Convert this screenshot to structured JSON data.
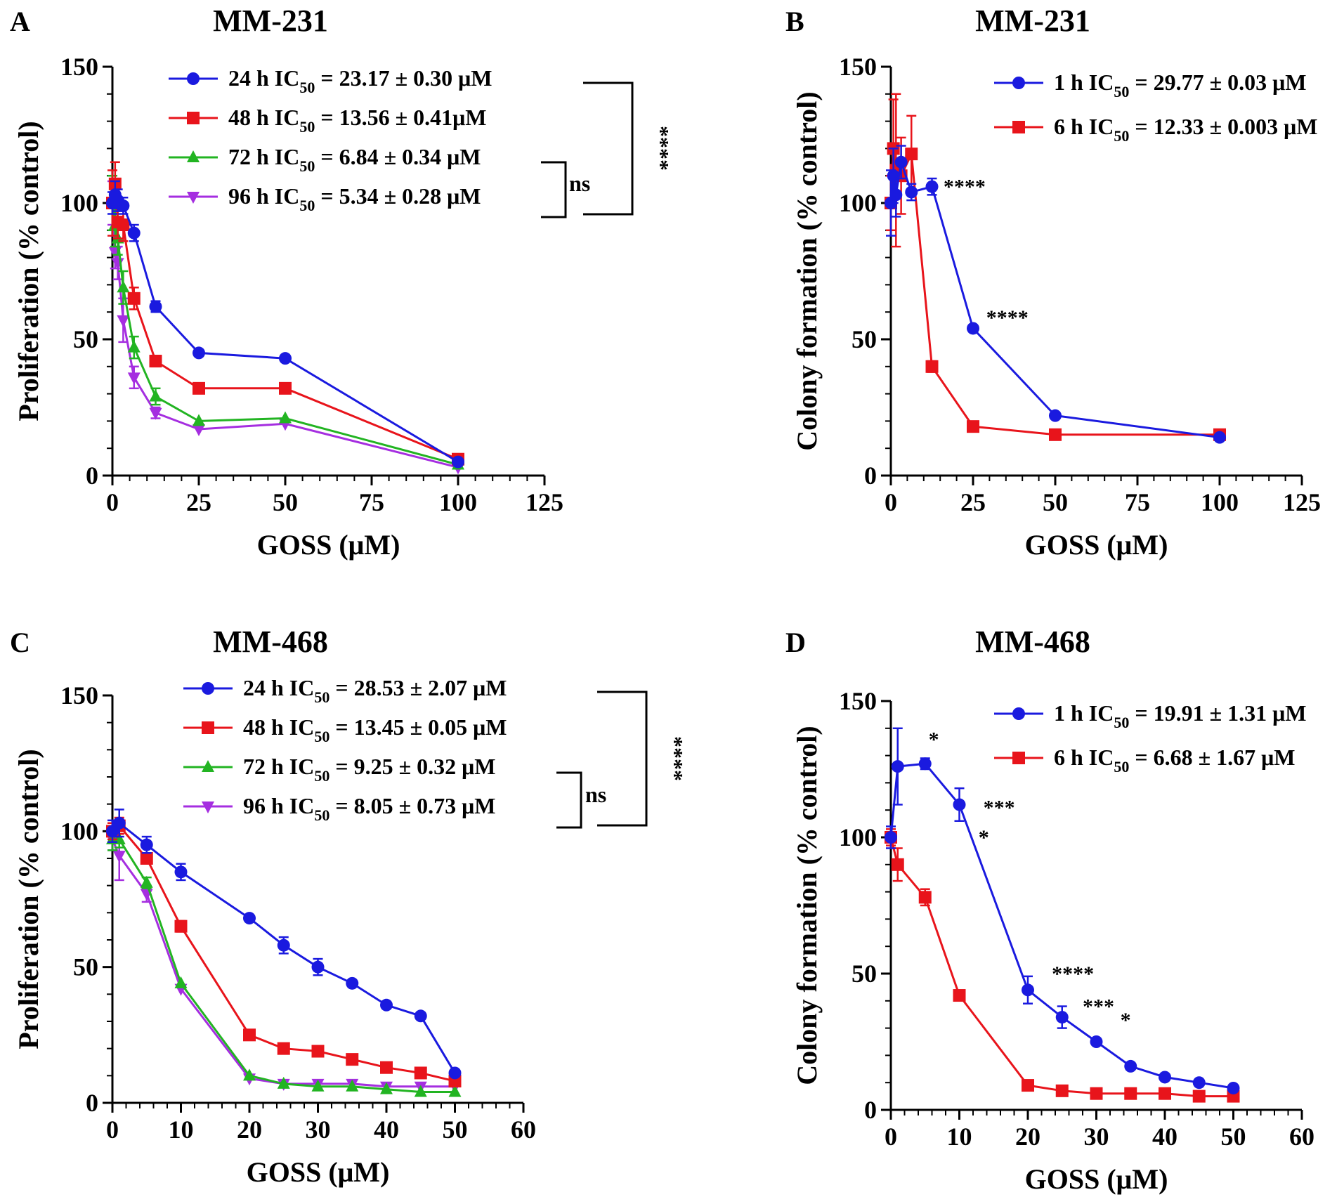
{
  "x_axis_label": "GOSS (μM)",
  "chart_data": [
    {
      "panel": "A",
      "title": "MM-231",
      "type": "line",
      "ylabel": "Proliferation (% control)",
      "xlabel": "GOSS (μM)",
      "xlim": [
        0,
        125
      ],
      "ylim": [
        0,
        150
      ],
      "xticks": [
        0,
        25,
        50,
        75,
        100,
        125
      ],
      "yticks": [
        0,
        50,
        100,
        150
      ],
      "series": [
        {
          "name": "24 h",
          "legend_prefix": "24 h IC",
          "legend_value": " = 23.17 ± 0.30 μM",
          "color": "#1a1adf",
          "marker": "circle",
          "x": [
            0,
            0.78,
            1.56,
            3.125,
            6.25,
            12.5,
            25,
            50,
            100
          ],
          "y": [
            100,
            103,
            101,
            99,
            89,
            62,
            45,
            43,
            5
          ],
          "err": [
            4,
            5,
            4,
            3,
            3,
            2,
            1,
            1,
            1
          ]
        },
        {
          "name": "48 h",
          "legend_prefix": "48 h IC",
          "legend_value": " = 13.56 ± 0.41μM",
          "color": "#e8141b",
          "marker": "square",
          "x": [
            0,
            0.78,
            1.56,
            3.125,
            6.25,
            12.5,
            25,
            50,
            100
          ],
          "y": [
            100,
            107,
            93,
            92,
            65,
            42,
            32,
            32,
            6
          ],
          "err": [
            12,
            8,
            6,
            6,
            4,
            2,
            1,
            1,
            1
          ]
        },
        {
          "name": "72 h",
          "legend_prefix": "72 h IC",
          "legend_value": " = 6.84 ± 0.34 μM",
          "color": "#22b422",
          "marker": "triangle-up",
          "x": [
            0,
            0.78,
            1.56,
            3.125,
            6.25,
            12.5,
            25,
            50,
            100
          ],
          "y": [
            100,
            92,
            87,
            69,
            47,
            29,
            20,
            21,
            4
          ],
          "err": [
            10,
            8,
            6,
            6,
            4,
            3,
            1,
            1,
            1
          ]
        },
        {
          "name": "96 h",
          "legend_prefix": "96 h IC",
          "legend_value": " = 5.34 ± 0.28 μM",
          "color": "#a52ee0",
          "marker": "triangle-down",
          "x": [
            0,
            0.78,
            1.56,
            3.125,
            6.25,
            12.5,
            25,
            50,
            100
          ],
          "y": [
            100,
            82,
            78,
            57,
            36,
            23,
            17,
            19,
            3
          ],
          "err": [
            8,
            6,
            6,
            8,
            4,
            2,
            1,
            1,
            1
          ]
        }
      ],
      "brackets": [
        {
          "label": "****",
          "orientation": "vertical",
          "from": 0,
          "to": 3
        },
        {
          "label": "ns",
          "orientation": "horizontal",
          "from": 2,
          "to": 3
        }
      ],
      "annotations": []
    },
    {
      "panel": "B",
      "title": "MM-231",
      "type": "line",
      "ylabel": "Colony formation (% control)",
      "xlabel": "GOSS (μM)",
      "xlim": [
        0,
        125
      ],
      "ylim": [
        0,
        150
      ],
      "xticks": [
        0,
        25,
        50,
        75,
        100,
        125
      ],
      "yticks": [
        0,
        50,
        100,
        150
      ],
      "series": [
        {
          "name": "1 h",
          "legend_prefix": "1 h IC",
          "legend_value": " = 29.77 ± 0.03 μM",
          "color": "#1a1adf",
          "marker": "circle",
          "x": [
            0,
            0.78,
            1.56,
            3.125,
            6.25,
            12.5,
            25,
            50,
            100
          ],
          "y": [
            100,
            110,
            103,
            115,
            104,
            106,
            54,
            22,
            14
          ],
          "err": [
            12,
            10,
            8,
            6,
            3,
            3,
            1,
            1,
            1
          ]
        },
        {
          "name": "6 h",
          "legend_prefix": "6 h IC",
          "legend_value": " = 12.33 ± 0.003 μM",
          "color": "#e8141b",
          "marker": "square",
          "x": [
            0,
            0.78,
            1.56,
            3.125,
            6.25,
            12.5,
            25,
            50,
            100
          ],
          "y": [
            100,
            120,
            112,
            110,
            118,
            40,
            18,
            15,
            15
          ],
          "err": [
            10,
            18,
            28,
            14,
            14,
            2,
            1,
            1,
            1
          ]
        }
      ],
      "brackets": [],
      "annotations": [
        {
          "text": "****",
          "x": 16,
          "y": 106
        },
        {
          "text": "****",
          "x": 29,
          "y": 58
        }
      ]
    },
    {
      "panel": "C",
      "title": "MM-468",
      "type": "line",
      "ylabel": "Proliferation (% control)",
      "xlabel": "GOSS (μM)",
      "xlim": [
        0,
        60
      ],
      "ylim": [
        0,
        150
      ],
      "xticks": [
        0,
        10,
        20,
        30,
        40,
        50,
        60
      ],
      "yticks": [
        0,
        50,
        100,
        150
      ],
      "series": [
        {
          "name": "24 h",
          "legend_prefix": "24 h IC",
          "legend_value": " = 28.53 ± 2.07 μM",
          "color": "#1a1adf",
          "marker": "circle",
          "x": [
            0,
            1,
            5,
            10,
            20,
            25,
            30,
            35,
            40,
            45,
            50
          ],
          "y": [
            100,
            103,
            95,
            85,
            68,
            58,
            50,
            44,
            36,
            32,
            11
          ],
          "err": [
            4,
            5,
            3,
            3,
            1,
            3,
            3,
            1,
            1,
            1,
            1
          ]
        },
        {
          "name": "48 h",
          "legend_prefix": "48 h IC",
          "legend_value": " = 13.45 ± 0.05 μM",
          "color": "#e8141b",
          "marker": "square",
          "x": [
            0,
            1,
            5,
            10,
            20,
            25,
            30,
            35,
            40,
            45,
            50
          ],
          "y": [
            100,
            102,
            90,
            65,
            25,
            20,
            19,
            16,
            13,
            11,
            8
          ],
          "err": [
            3,
            3,
            2,
            2,
            1,
            1,
            1,
            1,
            1,
            1,
            1
          ]
        },
        {
          "name": "72 h",
          "legend_prefix": "72 h IC",
          "legend_value": " = 9.25 ± 0.32 μM",
          "color": "#22b422",
          "marker": "triangle-up",
          "x": [
            0,
            1,
            5,
            10,
            20,
            25,
            30,
            35,
            40,
            45,
            50
          ],
          "y": [
            97,
            97,
            81,
            44,
            10,
            7,
            6,
            6,
            5,
            4,
            4
          ],
          "err": [
            4,
            3,
            2,
            1,
            1,
            1,
            1,
            1,
            1,
            1,
            1
          ]
        },
        {
          "name": "96 h",
          "legend_prefix": "96 h IC",
          "legend_value": " = 8.05 ± 0.73 μM",
          "color": "#a52ee0",
          "marker": "triangle-down",
          "x": [
            0,
            1,
            5,
            10,
            20,
            25,
            30,
            35,
            40,
            45,
            50
          ],
          "y": [
            97,
            91,
            77,
            42,
            9,
            7,
            7,
            7,
            6,
            6,
            6
          ],
          "err": [
            4,
            9,
            3,
            1,
            1,
            1,
            1,
            1,
            1,
            1,
            1
          ]
        }
      ],
      "brackets": [
        {
          "label": "****",
          "orientation": "vertical",
          "from": 0,
          "to": 3
        },
        {
          "label": "ns",
          "orientation": "horizontal",
          "from": 2,
          "to": 3
        }
      ],
      "annotations": []
    },
    {
      "panel": "D",
      "title": "MM-468",
      "type": "line",
      "ylabel": "Colony formation (% control)",
      "xlabel": "GOSS (μM)",
      "xlim": [
        0,
        60
      ],
      "ylim": [
        0,
        150
      ],
      "xticks": [
        0,
        10,
        20,
        30,
        40,
        50,
        60
      ],
      "yticks": [
        0,
        50,
        100,
        150
      ],
      "series": [
        {
          "name": "1 h",
          "legend_prefix": "1 h IC",
          "legend_value": " = 19.91 ± 1.31 μM",
          "color": "#1a1adf",
          "marker": "circle",
          "x": [
            0,
            1,
            5,
            10,
            20,
            25,
            30,
            35,
            40,
            45,
            50
          ],
          "y": [
            100,
            126,
            127,
            112,
            44,
            34,
            25,
            16,
            12,
            10,
            8
          ],
          "err": [
            4,
            14,
            2,
            6,
            5,
            4,
            1,
            1,
            1,
            1,
            1
          ]
        },
        {
          "name": "6 h",
          "legend_prefix": "6 h IC",
          "legend_value": " = 6.68 ± 1.67 μM",
          "color": "#e8141b",
          "marker": "square",
          "x": [
            0,
            1,
            5,
            10,
            20,
            25,
            30,
            35,
            40,
            45,
            50
          ],
          "y": [
            100,
            90,
            78,
            42,
            9,
            7,
            6,
            6,
            6,
            5,
            5
          ],
          "err": [
            3,
            6,
            3,
            1,
            1,
            1,
            1,
            1,
            1,
            1,
            1
          ]
        }
      ],
      "brackets": [],
      "annotations": [
        {
          "text": "*",
          "x": 5.5,
          "y": 136
        },
        {
          "text": "***",
          "x": 13.5,
          "y": 111
        },
        {
          "text": "*",
          "x": 12.8,
          "y": 100
        },
        {
          "text": "****",
          "x": 23.5,
          "y": 50
        },
        {
          "text": "***",
          "x": 28,
          "y": 38
        },
        {
          "text": "*",
          "x": 33.5,
          "y": 33
        }
      ]
    }
  ]
}
